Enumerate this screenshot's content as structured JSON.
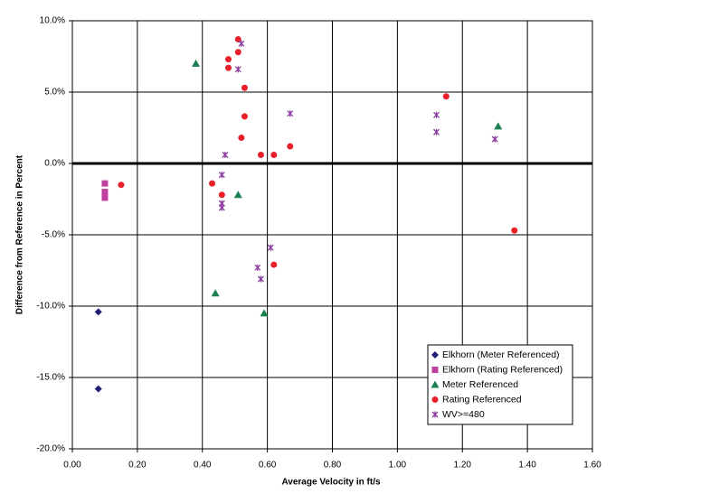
{
  "chart_data": {
    "type": "scatter",
    "x_label": "Average Velocity in ft/s",
    "y_label": "Difference from Reference in Percent",
    "xlim": [
      0,
      1.6
    ],
    "ylim": [
      -20,
      10
    ],
    "xticks": [
      {
        "value": 0,
        "label": "0.00"
      },
      {
        "value": 0.2,
        "label": "0.20"
      },
      {
        "value": 0.4,
        "label": "0.40"
      },
      {
        "value": 0.6,
        "label": "0.60"
      },
      {
        "value": 0.8,
        "label": "0.80"
      },
      {
        "value": 1.0,
        "label": "1.00"
      },
      {
        "value": 1.2,
        "label": "1.20"
      },
      {
        "value": 1.4,
        "label": "1.40"
      },
      {
        "value": 1.6,
        "label": "1.60"
      }
    ],
    "yticks": [
      {
        "value": -20,
        "label": "-20.0%"
      },
      {
        "value": -15,
        "label": "-15.0%"
      },
      {
        "value": -10,
        "label": "-10.0%"
      },
      {
        "value": -5,
        "label": "-5.0%"
      },
      {
        "value": 0,
        "label": "0.0%"
      },
      {
        "value": 5,
        "label": "5.0%"
      },
      {
        "value": 10,
        "label": "10.0%"
      }
    ],
    "grid": true,
    "legend": "lower right",
    "series": [
      {
        "name": "Elkhorn (Meter Referenced)",
        "color": "#1f1f7a",
        "marker": "diamond",
        "x": [
          0.08,
          0.08
        ],
        "values": [
          -10.4,
          -15.8
        ]
      },
      {
        "name": "Elkhorn (Rating Referenced)",
        "color": "#c040a0",
        "marker": "square",
        "x": [
          0.1,
          0.1,
          0.1
        ],
        "values": [
          -1.4,
          -2.0,
          -2.4
        ]
      },
      {
        "name": "Meter Referenced",
        "color": "#1a8050",
        "marker": "triangle",
        "x": [
          0.38,
          0.51,
          0.44,
          0.59,
          1.31
        ],
        "values": [
          7.0,
          -2.2,
          -9.1,
          -10.5,
          2.6
        ]
      },
      {
        "name": "Rating Referenced",
        "color": "#e8202a",
        "marker": "circle",
        "x": [
          0.51,
          0.51,
          0.48,
          0.48,
          0.53,
          0.53,
          0.52,
          0.58,
          0.62,
          0.67,
          0.43,
          0.46,
          0.15,
          0.62,
          1.15,
          1.36
        ],
        "values": [
          8.7,
          7.8,
          7.3,
          6.7,
          5.3,
          3.3,
          1.8,
          0.6,
          0.6,
          1.2,
          -1.4,
          -2.2,
          -1.5,
          -7.1,
          4.7,
          -4.7
        ]
      },
      {
        "name": "WV>=480",
        "color": "#8a3aa0",
        "marker": "asterisk",
        "x": [
          0.52,
          0.51,
          0.67,
          0.47,
          0.46,
          0.46,
          0.46,
          0.61,
          0.57,
          0.58,
          1.12,
          1.12,
          1.3
        ],
        "values": [
          8.4,
          6.6,
          3.5,
          0.6,
          -0.8,
          -2.8,
          -3.1,
          -5.9,
          -7.3,
          -8.1,
          3.4,
          2.2,
          1.7
        ]
      }
    ]
  }
}
